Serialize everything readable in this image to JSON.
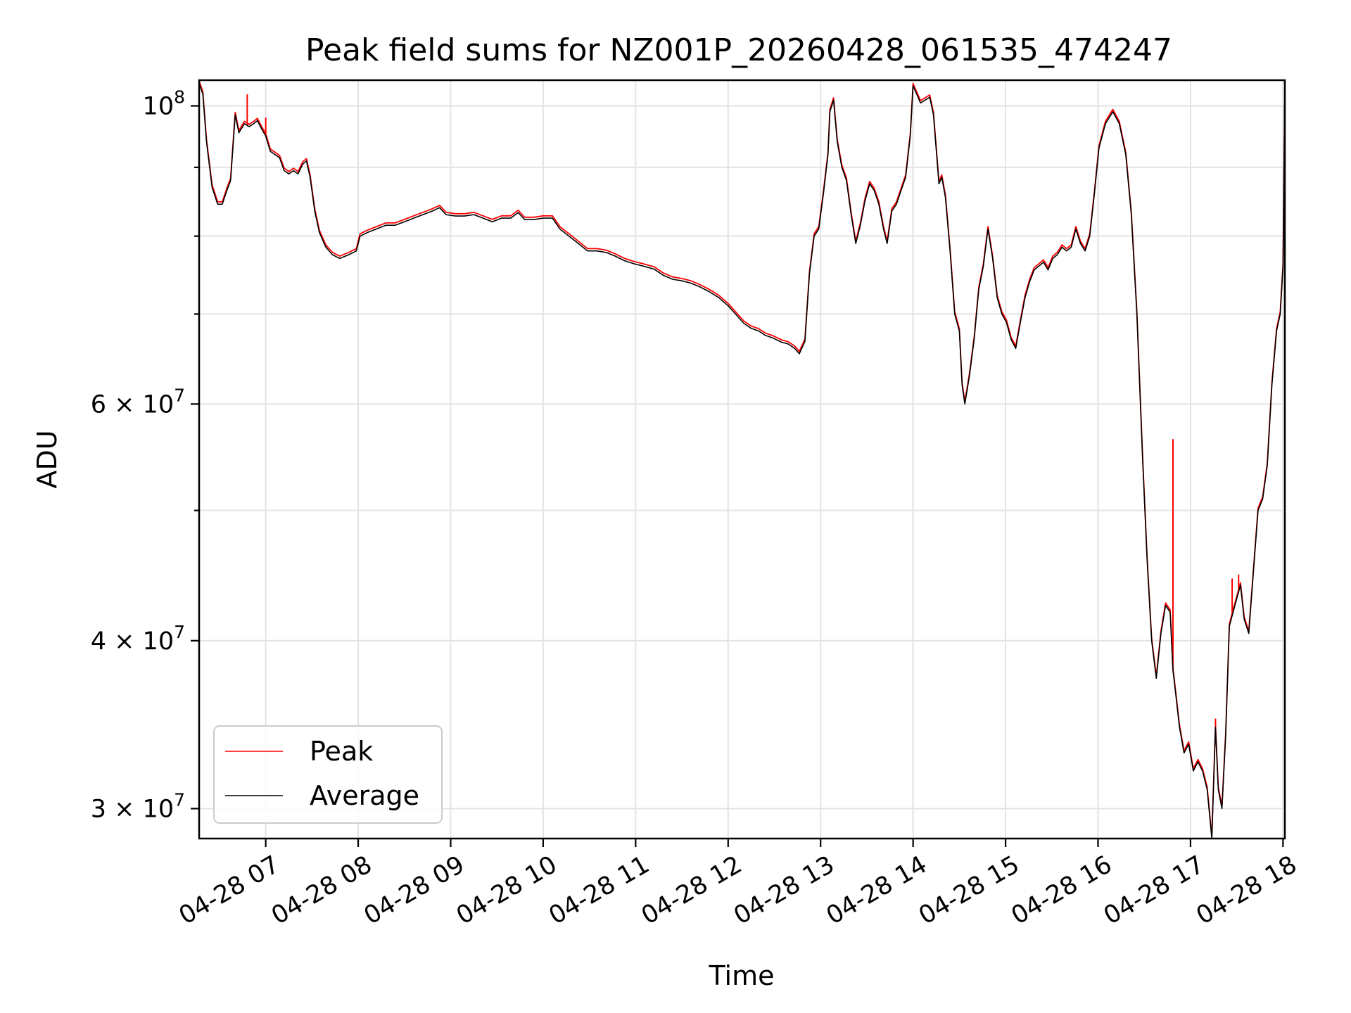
{
  "chart_data": {
    "type": "line",
    "title": "Peak field sums for NZ001P_20260428_061535_474247",
    "xlabel": "Time",
    "ylabel": "ADU",
    "x_range_hours": [
      6.28,
      18.02
    ],
    "y_scale": "log",
    "ylim": [
      28500000,
      104500000
    ],
    "grid": true,
    "legend_position": "lower-left",
    "x_ticks": [
      {
        "hour": 7,
        "label": "04-28 07"
      },
      {
        "hour": 8,
        "label": "04-28 08"
      },
      {
        "hour": 9,
        "label": "04-28 09"
      },
      {
        "hour": 10,
        "label": "04-28 10"
      },
      {
        "hour": 11,
        "label": "04-28 11"
      },
      {
        "hour": 12,
        "label": "04-28 12"
      },
      {
        "hour": 13,
        "label": "04-28 13"
      },
      {
        "hour": 14,
        "label": "04-28 14"
      },
      {
        "hour": 15,
        "label": "04-28 15"
      },
      {
        "hour": 16,
        "label": "04-28 16"
      },
      {
        "hour": 17,
        "label": "04-28 17"
      },
      {
        "hour": 18,
        "label": "04-28 18"
      }
    ],
    "y_ticks": [
      {
        "value": 100000000,
        "base": "10",
        "exp": "8",
        "mant": ""
      },
      {
        "value": 60000000,
        "base": "10",
        "exp": "7",
        "mant": "6 × "
      },
      {
        "value": 40000000,
        "base": "10",
        "exp": "7",
        "mant": "4 × "
      },
      {
        "value": 30000000,
        "base": "10",
        "exp": "7",
        "mant": "3 × "
      }
    ],
    "y_minor_ticks": [
      90000000,
      80000000,
      70000000,
      50000000
    ],
    "series": [
      {
        "name": "Peak",
        "color": "#ff0000",
        "spikes": [
          [
            6.8,
            102000000
          ],
          [
            7.0,
            98000000
          ],
          [
            16.81,
            56500000
          ],
          [
            17.27,
            35000000
          ],
          [
            17.45,
            44500000
          ],
          [
            17.52,
            44800000
          ]
        ]
      },
      {
        "name": "Average",
        "color": "#000000",
        "points": [
          [
            6.28,
            104000000
          ],
          [
            6.32,
            102000000
          ],
          [
            6.36,
            94000000
          ],
          [
            6.42,
            87000000
          ],
          [
            6.48,
            84500000
          ],
          [
            6.53,
            84500000
          ],
          [
            6.58,
            86500000
          ],
          [
            6.62,
            88000000
          ],
          [
            6.67,
            98500000
          ],
          [
            6.71,
            95500000
          ],
          [
            6.77,
            97000000
          ],
          [
            6.82,
            96500000
          ],
          [
            6.87,
            97000000
          ],
          [
            6.91,
            97500000
          ],
          [
            6.96,
            96000000
          ],
          [
            7.0,
            95000000
          ],
          [
            7.05,
            92500000
          ],
          [
            7.1,
            92000000
          ],
          [
            7.15,
            91500000
          ],
          [
            7.2,
            89500000
          ],
          [
            7.25,
            89000000
          ],
          [
            7.3,
            89500000
          ],
          [
            7.35,
            89000000
          ],
          [
            7.4,
            90500000
          ],
          [
            7.44,
            91000000
          ],
          [
            7.48,
            88500000
          ],
          [
            7.53,
            83500000
          ],
          [
            7.58,
            80500000
          ],
          [
            7.65,
            78500000
          ],
          [
            7.72,
            77500000
          ],
          [
            7.8,
            77000000
          ],
          [
            7.9,
            77500000
          ],
          [
            7.98,
            78000000
          ],
          [
            8.02,
            80000000
          ],
          [
            8.1,
            80500000
          ],
          [
            8.2,
            81000000
          ],
          [
            8.3,
            81500000
          ],
          [
            8.4,
            81500000
          ],
          [
            8.5,
            82000000
          ],
          [
            8.6,
            82500000
          ],
          [
            8.7,
            83000000
          ],
          [
            8.8,
            83500000
          ],
          [
            8.88,
            84000000
          ],
          [
            8.95,
            83000000
          ],
          [
            9.05,
            82800000
          ],
          [
            9.15,
            82800000
          ],
          [
            9.25,
            83000000
          ],
          [
            9.35,
            82500000
          ],
          [
            9.45,
            82000000
          ],
          [
            9.55,
            82500000
          ],
          [
            9.65,
            82500000
          ],
          [
            9.73,
            83300000
          ],
          [
            9.8,
            82300000
          ],
          [
            9.9,
            82300000
          ],
          [
            10.0,
            82500000
          ],
          [
            10.1,
            82500000
          ],
          [
            10.18,
            81000000
          ],
          [
            10.28,
            80000000
          ],
          [
            10.38,
            79000000
          ],
          [
            10.48,
            78000000
          ],
          [
            10.58,
            78000000
          ],
          [
            10.68,
            77800000
          ],
          [
            10.78,
            77300000
          ],
          [
            10.88,
            76700000
          ],
          [
            10.98,
            76300000
          ],
          [
            11.08,
            76000000
          ],
          [
            11.2,
            75600000
          ],
          [
            11.3,
            74800000
          ],
          [
            11.4,
            74300000
          ],
          [
            11.5,
            74100000
          ],
          [
            11.6,
            73800000
          ],
          [
            11.7,
            73300000
          ],
          [
            11.8,
            72700000
          ],
          [
            11.9,
            72000000
          ],
          [
            12.0,
            71000000
          ],
          [
            12.08,
            70000000
          ],
          [
            12.17,
            68900000
          ],
          [
            12.25,
            68300000
          ],
          [
            12.33,
            68000000
          ],
          [
            12.4,
            67500000
          ],
          [
            12.48,
            67200000
          ],
          [
            12.58,
            66700000
          ],
          [
            12.65,
            66500000
          ],
          [
            12.72,
            66000000
          ],
          [
            12.77,
            65400000
          ],
          [
            12.83,
            66800000
          ],
          [
            12.88,
            75000000
          ],
          [
            12.93,
            80000000
          ],
          [
            12.98,
            81000000
          ],
          [
            13.03,
            86000000
          ],
          [
            13.08,
            92000000
          ],
          [
            13.1,
            99000000
          ],
          [
            13.14,
            101000000
          ],
          [
            13.18,
            94000000
          ],
          [
            13.23,
            90000000
          ],
          [
            13.28,
            88000000
          ],
          [
            13.33,
            83000000
          ],
          [
            13.38,
            79000000
          ],
          [
            13.43,
            81500000
          ],
          [
            13.48,
            85000000
          ],
          [
            13.53,
            87500000
          ],
          [
            13.58,
            86500000
          ],
          [
            13.63,
            84500000
          ],
          [
            13.68,
            81000000
          ],
          [
            13.72,
            79000000
          ],
          [
            13.77,
            83500000
          ],
          [
            13.82,
            84500000
          ],
          [
            13.87,
            86500000
          ],
          [
            13.92,
            88500000
          ],
          [
            13.97,
            95000000
          ],
          [
            14.0,
            103500000
          ],
          [
            14.04,
            102000000
          ],
          [
            14.08,
            100500000
          ],
          [
            14.13,
            101000000
          ],
          [
            14.18,
            101500000
          ],
          [
            14.22,
            98500000
          ],
          [
            14.28,
            87500000
          ],
          [
            14.31,
            88500000
          ],
          [
            14.35,
            85500000
          ],
          [
            14.4,
            78000000
          ],
          [
            14.45,
            70000000
          ],
          [
            14.5,
            68000000
          ],
          [
            14.53,
            62000000
          ],
          [
            14.56,
            60000000
          ],
          [
            14.61,
            63000000
          ],
          [
            14.66,
            67000000
          ],
          [
            14.71,
            73000000
          ],
          [
            14.76,
            76000000
          ],
          [
            14.81,
            81000000
          ],
          [
            14.86,
            77000000
          ],
          [
            14.91,
            72000000
          ],
          [
            14.96,
            70000000
          ],
          [
            15.01,
            69000000
          ],
          [
            15.06,
            67000000
          ],
          [
            15.11,
            66000000
          ],
          [
            15.16,
            69000000
          ],
          [
            15.21,
            72000000
          ],
          [
            15.26,
            74000000
          ],
          [
            15.31,
            75500000
          ],
          [
            15.36,
            76000000
          ],
          [
            15.41,
            76500000
          ],
          [
            15.46,
            75500000
          ],
          [
            15.51,
            77000000
          ],
          [
            15.56,
            77500000
          ],
          [
            15.61,
            78500000
          ],
          [
            15.66,
            78000000
          ],
          [
            15.71,
            78500000
          ],
          [
            15.76,
            81000000
          ],
          [
            15.81,
            79000000
          ],
          [
            15.86,
            78000000
          ],
          [
            15.91,
            80000000
          ],
          [
            15.96,
            86000000
          ],
          [
            16.01,
            93000000
          ],
          [
            16.08,
            97000000
          ],
          [
            16.16,
            99000000
          ],
          [
            16.23,
            97000000
          ],
          [
            16.3,
            92000000
          ],
          [
            16.36,
            83000000
          ],
          [
            16.42,
            70000000
          ],
          [
            16.48,
            55000000
          ],
          [
            16.53,
            46000000
          ],
          [
            16.58,
            40000000
          ],
          [
            16.63,
            37500000
          ],
          [
            16.68,
            40500000
          ],
          [
            16.73,
            42500000
          ],
          [
            16.78,
            42000000
          ],
          [
            16.81,
            38000000
          ],
          [
            16.84,
            36500000
          ],
          [
            16.88,
            34500000
          ],
          [
            16.93,
            33000000
          ],
          [
            16.98,
            33500000
          ],
          [
            17.03,
            32000000
          ],
          [
            17.08,
            32500000
          ],
          [
            17.13,
            32000000
          ],
          [
            17.18,
            31000000
          ],
          [
            17.23,
            28500000
          ],
          [
            17.27,
            34500000
          ],
          [
            17.3,
            31000000
          ],
          [
            17.34,
            30000000
          ],
          [
            17.38,
            34000000
          ],
          [
            17.42,
            41000000
          ],
          [
            17.46,
            42000000
          ],
          [
            17.5,
            43000000
          ],
          [
            17.54,
            44000000
          ],
          [
            17.58,
            41500000
          ],
          [
            17.63,
            40500000
          ],
          [
            17.68,
            45000000
          ],
          [
            17.73,
            50000000
          ],
          [
            17.78,
            51000000
          ],
          [
            17.83,
            54000000
          ],
          [
            17.88,
            62000000
          ],
          [
            17.93,
            68000000
          ],
          [
            17.97,
            70000000
          ],
          [
            18.0,
            76000000
          ],
          [
            18.02,
            104000000
          ]
        ]
      }
    ]
  }
}
